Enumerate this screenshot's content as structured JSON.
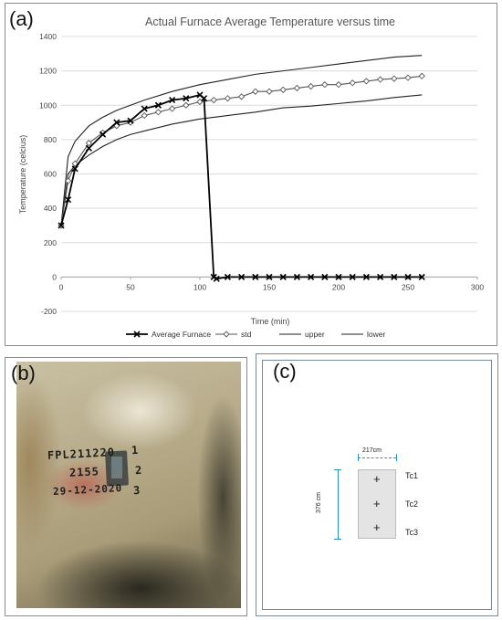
{
  "panels": {
    "a": "(a)",
    "b": "(b)",
    "c": "(c)"
  },
  "chart_data": {
    "type": "line",
    "title": "Actual Furnace Average Temperature versus time",
    "xlabel": "Time (min)",
    "ylabel": "Temperature (celcius)",
    "xlim": [
      0,
      300
    ],
    "ylim": [
      -200,
      1400
    ],
    "xticks": [
      0,
      50,
      100,
      150,
      200,
      250,
      300
    ],
    "yticks": [
      -200,
      0,
      200,
      400,
      600,
      800,
      1000,
      1200,
      1400
    ],
    "grid": "horizontal",
    "legend": "bottom",
    "series": [
      {
        "name": "Average Furnace",
        "marker": "x",
        "color": "#000000",
        "x": [
          0,
          5,
          10,
          20,
          30,
          40,
          50,
          60,
          70,
          80,
          90,
          100,
          103,
          110,
          112,
          120,
          130,
          140,
          150,
          160,
          170,
          180,
          190,
          200,
          210,
          220,
          230,
          240,
          250,
          260
        ],
        "y": [
          300,
          450,
          630,
          750,
          830,
          900,
          910,
          980,
          1000,
          1030,
          1040,
          1060,
          1040,
          0,
          -10,
          0,
          0,
          0,
          0,
          0,
          0,
          0,
          0,
          0,
          0,
          0,
          0,
          0,
          0,
          0
        ]
      },
      {
        "name": "std",
        "marker": "diamond",
        "color": "#555555",
        "x": [
          0,
          5,
          10,
          20,
          30,
          40,
          50,
          60,
          70,
          80,
          90,
          100,
          110,
          120,
          130,
          140,
          150,
          160,
          170,
          180,
          190,
          200,
          210,
          220,
          230,
          240,
          250,
          260
        ],
        "y": [
          300,
          560,
          660,
          780,
          840,
          880,
          900,
          940,
          960,
          980,
          1000,
          1020,
          1030,
          1040,
          1050,
          1080,
          1080,
          1090,
          1100,
          1110,
          1120,
          1120,
          1130,
          1140,
          1150,
          1155,
          1160,
          1170
        ]
      },
      {
        "name": "upper",
        "marker": "none",
        "color": "#222222",
        "x": [
          0,
          5,
          10,
          20,
          30,
          40,
          50,
          60,
          80,
          100,
          120,
          140,
          160,
          180,
          200,
          220,
          240,
          260
        ],
        "y": [
          300,
          700,
          790,
          880,
          930,
          970,
          1000,
          1030,
          1080,
          1120,
          1150,
          1180,
          1200,
          1220,
          1240,
          1260,
          1280,
          1290
        ]
      },
      {
        "name": "lower",
        "marker": "none",
        "color": "#222222",
        "x": [
          0,
          5,
          10,
          20,
          30,
          40,
          50,
          60,
          80,
          100,
          120,
          140,
          160,
          180,
          200,
          220,
          240,
          260
        ],
        "y": [
          300,
          600,
          650,
          710,
          760,
          800,
          830,
          850,
          890,
          920,
          940,
          960,
          985,
          995,
          1010,
          1025,
          1045,
          1060
        ]
      }
    ]
  },
  "photo": {
    "line1": "FPL211220",
    "line2": "2155",
    "line3": "29-12-2020",
    "marks": [
      "1",
      "2",
      "3"
    ]
  },
  "diagram": {
    "width_label": "217cm",
    "height_label": "376 cm",
    "tc_labels": [
      "Tc1",
      "Tc2",
      "Tc3"
    ],
    "plus": "+"
  }
}
